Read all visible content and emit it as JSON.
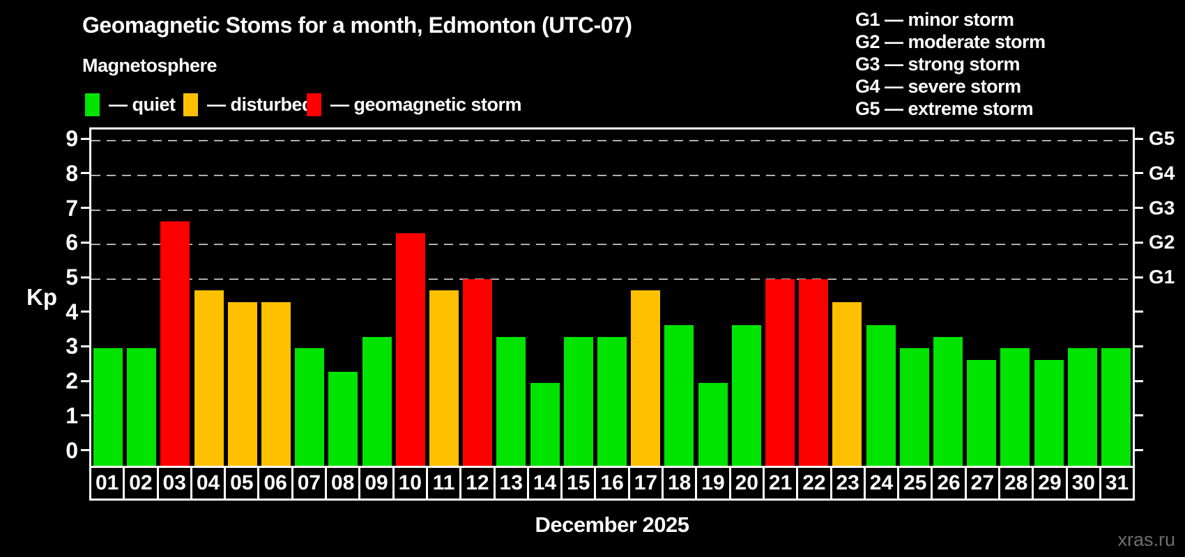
{
  "header": {
    "title": "Geomagnetic Stoms for a month, Edmonton (UTC-07)",
    "subtitle": "Magnetosphere"
  },
  "legend": {
    "items": [
      {
        "name": "quiet",
        "label": "— quiet",
        "color_key": "quiet"
      },
      {
        "name": "disturbed",
        "label": "— disturbed",
        "color_key": "disturbed"
      },
      {
        "name": "storm",
        "label": "— geomagnetic storm",
        "color_key": "storm"
      }
    ]
  },
  "storm_scale_legend": {
    "items": [
      "G1 — minor storm",
      "G2 — moderate storm",
      "G3 — strong storm",
      "G4 — severe storm",
      "G5 — extreme storm"
    ]
  },
  "chart_data": {
    "type": "bar",
    "title": "Geomagnetic Stoms for a month, Edmonton (UTC-07)",
    "subtitle": "Magnetosphere",
    "xlabel": "December 2025",
    "ylabel": "Kp",
    "ylim": [
      0,
      9
    ],
    "grid": "horizontal dashed lines at Kp 5,6,7,8,9",
    "legend_position": "top",
    "categories": [
      "01",
      "02",
      "03",
      "04",
      "05",
      "06",
      "07",
      "08",
      "09",
      "10",
      "11",
      "12",
      "13",
      "14",
      "15",
      "16",
      "17",
      "18",
      "19",
      "20",
      "21",
      "22",
      "23",
      "24",
      "25",
      "26",
      "27",
      "28",
      "29",
      "30",
      "31"
    ],
    "values": [
      3,
      3,
      6.67,
      4.67,
      4.33,
      4.33,
      3,
      2.33,
      3.33,
      6.33,
      4.67,
      5,
      3.33,
      2,
      3.33,
      3.33,
      4.67,
      3.67,
      2,
      3.67,
      5,
      5,
      4.33,
      3.67,
      3,
      3.33,
      2.67,
      3,
      2.67,
      3,
      3
    ],
    "levels": [
      "quiet",
      "quiet",
      "storm",
      "disturbed",
      "disturbed",
      "disturbed",
      "quiet",
      "quiet",
      "quiet",
      "storm",
      "disturbed",
      "storm",
      "quiet",
      "quiet",
      "quiet",
      "quiet",
      "disturbed",
      "quiet",
      "quiet",
      "quiet",
      "storm",
      "storm",
      "disturbed",
      "quiet",
      "quiet",
      "quiet",
      "quiet",
      "quiet",
      "quiet",
      "quiet",
      "quiet"
    ],
    "y_ticks": [
      0,
      1,
      2,
      3,
      4,
      5,
      6,
      7,
      8,
      9
    ],
    "right_axis_labels": [
      {
        "kp": 5,
        "label": "G1"
      },
      {
        "kp": 6,
        "label": "G2"
      },
      {
        "kp": 7,
        "label": "G3"
      },
      {
        "kp": 8,
        "label": "G4"
      },
      {
        "kp": 9,
        "label": "G5"
      }
    ]
  },
  "footer": {
    "month_label": "December 2025",
    "watermark": "xras.ru"
  },
  "colors": {
    "quiet": "#00e400",
    "disturbed": "#ffc000",
    "storm": "#ff0000",
    "background": "#000000",
    "grid": "#b0b0b0",
    "text": "#ffffff",
    "watermark": "#6f6f6f"
  }
}
